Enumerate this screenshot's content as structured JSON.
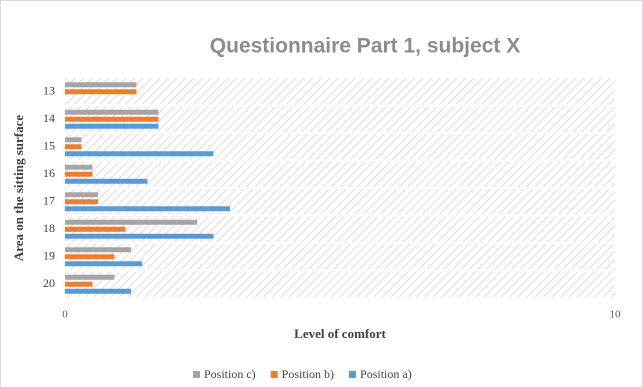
{
  "chart_data": {
    "type": "bar",
    "orientation": "horizontal",
    "title": "Questionnaire Part 1, subject X",
    "x_label": "Level of comfort",
    "y_label": "Area on the sitting surface",
    "categories": [
      "13",
      "14",
      "15",
      "16",
      "17",
      "18",
      "19",
      "20"
    ],
    "series": [
      {
        "name": "Position c)",
        "color": "#a5a5a5",
        "values": [
          1.3,
          1.7,
          0.3,
          0.5,
          0.6,
          2.4,
          1.2,
          0.9
        ]
      },
      {
        "name": "Position b)",
        "color": "#ed7d31",
        "values": [
          1.3,
          1.7,
          0.3,
          0.5,
          0.6,
          1.1,
          0.9,
          0.5
        ]
      },
      {
        "name": "Position a)",
        "color": "#5b9bd5",
        "values": [
          0,
          1.7,
          2.7,
          1.5,
          3.0,
          2.7,
          1.4,
          1.2
        ]
      }
    ],
    "xlim": [
      0,
      10
    ],
    "xticks": [
      0,
      10
    ],
    "legend": "bottom"
  }
}
